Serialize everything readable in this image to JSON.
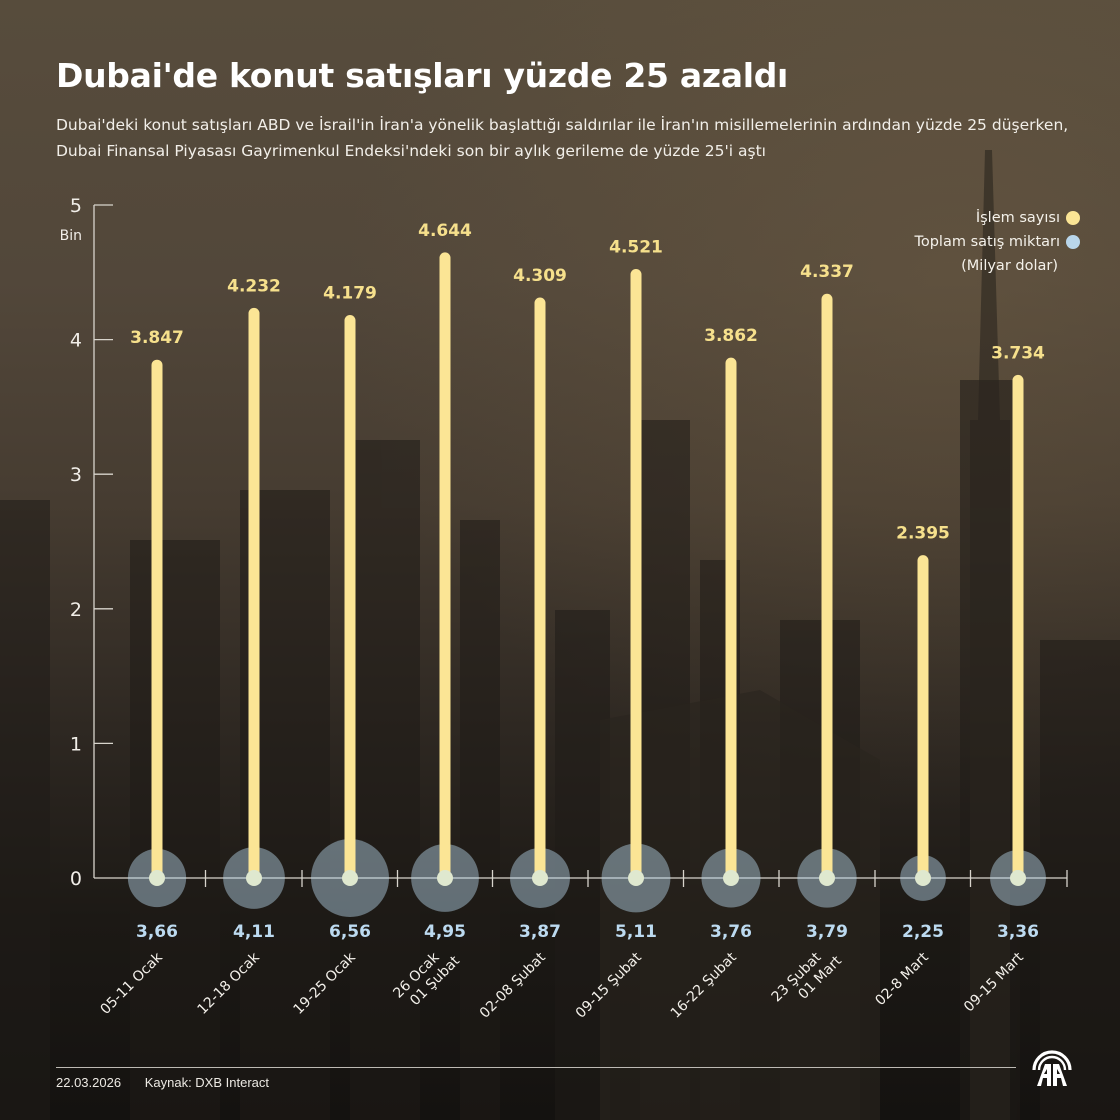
{
  "header": {
    "title": "Dubai'de konut satışları yüzde 25 azaldı",
    "subtitle": "Dubai'deki konut satışları ABD ve İsrail'in İran'a yönelik başlattığı saldırılar ile İran'ın misillemelerinin ardından yüzde 25 düşerken, Dubai Finansal Piyasası Gayrimenkul Endeksi'ndeki son bir aylık gerileme de yüzde 25'i aştı"
  },
  "legend": {
    "series1_label": "İşlem sayısı",
    "series2_label": "Toplam satış miktarı",
    "series2_unit": "(Milyar dolar)"
  },
  "axis": {
    "unit_label": "Bin",
    "ticks": [
      "0",
      "1",
      "2",
      "3",
      "4",
      "5"
    ]
  },
  "colors": {
    "bar": "#fbe595",
    "bar_label": "#f6e08c",
    "bubble": "#b9d6ea",
    "bubble_label": "#bcdaf0",
    "axis": "#d8d4cc"
  },
  "footer": {
    "date": "22.03.2026",
    "source": "Kaynak: DXB Interact",
    "logo": "aa-logo-icon"
  },
  "chart_data": {
    "type": "bar",
    "title": "Dubai'de konut satışları yüzde 25 azaldı",
    "subtitle": "Dubai'deki konut satışları ABD ve İsrail'in İran'a yönelik başlattığı saldırılar ile İran'ın misillemelerinin ardından yüzde 25 düşerken, Dubai Finansal Piyasası Gayrimenkul Endeksi'ndeki son bir aylık gerileme de yüzde 25'i aştı",
    "xlabel": "",
    "ylabel": "Bin",
    "ylim": [
      0,
      5
    ],
    "grid": false,
    "legend_position": "top-right",
    "categories": [
      "05-11 Ocak",
      "12-18 Ocak",
      "19-25 Ocak",
      "26 Ocak\n01 Şubat",
      "02-08 Şubat",
      "09-15 Şubat",
      "16-22 Şubat",
      "23 Şubat\n01 Mart",
      "02-8 Mart",
      "09-15 Mart"
    ],
    "series": [
      {
        "name": "İşlem sayısı",
        "kind": "lollipop-bar",
        "values": [
          3847,
          4232,
          4179,
          4644,
          4309,
          4521,
          3862,
          4337,
          2395,
          3734
        ],
        "labels": [
          "3.847",
          "4.232",
          "4.179",
          "4.644",
          "4.309",
          "4.521",
          "3.862",
          "4.337",
          "2.395",
          "3.734"
        ]
      },
      {
        "name": "Toplam satış miktarı (Milyar dolar)",
        "kind": "bubble",
        "values": [
          3.66,
          4.11,
          6.56,
          4.95,
          3.87,
          5.11,
          3.76,
          3.79,
          2.25,
          3.36
        ],
        "labels": [
          "3,66",
          "4,11",
          "6,56",
          "4,95",
          "3,87",
          "5,11",
          "3,76",
          "3,79",
          "2,25",
          "3,36"
        ]
      }
    ]
  }
}
